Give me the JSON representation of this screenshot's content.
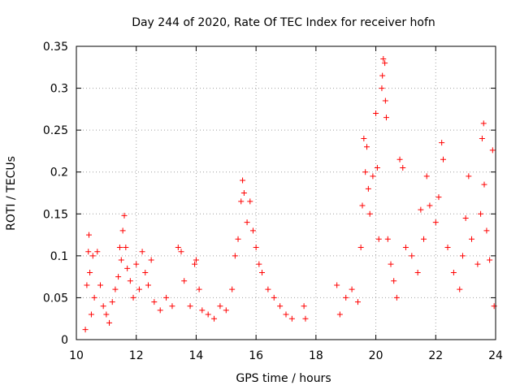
{
  "chart_data": {
    "type": "scatter",
    "title": "Day 244 of 2020, Rate Of TEC Index for receiver hofn",
    "xlabel": "GPS time / hours",
    "ylabel": "ROTI / TECUs",
    "xlim": [
      10,
      24
    ],
    "ylim": [
      0,
      0.35
    ],
    "xticks": [
      "10",
      "12",
      "14",
      "16",
      "18",
      "20",
      "22",
      "24"
    ],
    "yticks": [
      "0",
      "0.05",
      "0.1",
      "0.15",
      "0.2",
      "0.25",
      "0.3",
      "0.35"
    ],
    "grid": true,
    "marker": "+",
    "color": "#ff0000",
    "series": [
      {
        "points": [
          [
            10.3,
            0.012
          ],
          [
            10.35,
            0.065
          ],
          [
            10.4,
            0.105
          ],
          [
            10.42,
            0.125
          ],
          [
            10.45,
            0.08
          ],
          [
            10.5,
            0.03
          ],
          [
            10.55,
            0.1
          ],
          [
            10.6,
            0.05
          ],
          [
            10.7,
            0.105
          ],
          [
            10.8,
            0.065
          ],
          [
            10.9,
            0.04
          ],
          [
            11.0,
            0.03
          ],
          [
            11.1,
            0.02
          ],
          [
            11.2,
            0.045
          ],
          [
            11.3,
            0.06
          ],
          [
            11.4,
            0.075
          ],
          [
            11.45,
            0.11
          ],
          [
            11.5,
            0.095
          ],
          [
            11.55,
            0.13
          ],
          [
            11.6,
            0.148
          ],
          [
            11.65,
            0.11
          ],
          [
            11.7,
            0.085
          ],
          [
            11.8,
            0.07
          ],
          [
            11.9,
            0.05
          ],
          [
            12.0,
            0.09
          ],
          [
            12.1,
            0.06
          ],
          [
            12.2,
            0.105
          ],
          [
            12.3,
            0.08
          ],
          [
            12.4,
            0.065
          ],
          [
            12.5,
            0.095
          ],
          [
            12.6,
            0.045
          ],
          [
            12.8,
            0.035
          ],
          [
            13.0,
            0.05
          ],
          [
            13.2,
            0.04
          ],
          [
            13.4,
            0.11
          ],
          [
            13.5,
            0.105
          ],
          [
            13.6,
            0.07
          ],
          [
            13.8,
            0.04
          ],
          [
            13.95,
            0.09
          ],
          [
            14.0,
            0.095
          ],
          [
            14.1,
            0.06
          ],
          [
            14.2,
            0.035
          ],
          [
            14.4,
            0.03
          ],
          [
            14.6,
            0.025
          ],
          [
            14.8,
            0.04
          ],
          [
            15.0,
            0.035
          ],
          [
            15.2,
            0.06
          ],
          [
            15.3,
            0.1
          ],
          [
            15.4,
            0.12
          ],
          [
            15.5,
            0.165
          ],
          [
            15.55,
            0.19
          ],
          [
            15.6,
            0.175
          ],
          [
            15.7,
            0.14
          ],
          [
            15.8,
            0.165
          ],
          [
            15.9,
            0.13
          ],
          [
            16.0,
            0.11
          ],
          [
            16.1,
            0.09
          ],
          [
            16.2,
            0.08
          ],
          [
            16.4,
            0.06
          ],
          [
            16.6,
            0.05
          ],
          [
            16.8,
            0.04
          ],
          [
            17.0,
            0.03
          ],
          [
            17.2,
            0.025
          ],
          [
            17.6,
            0.04
          ],
          [
            17.65,
            0.025
          ],
          [
            18.7,
            0.065
          ],
          [
            18.8,
            0.03
          ],
          [
            19.0,
            0.05
          ],
          [
            19.2,
            0.06
          ],
          [
            19.4,
            0.045
          ],
          [
            19.5,
            0.11
          ],
          [
            19.55,
            0.16
          ],
          [
            19.6,
            0.24
          ],
          [
            19.65,
            0.2
          ],
          [
            19.7,
            0.23
          ],
          [
            19.75,
            0.18
          ],
          [
            19.8,
            0.15
          ],
          [
            19.9,
            0.195
          ],
          [
            20.0,
            0.27
          ],
          [
            20.05,
            0.205
          ],
          [
            20.1,
            0.12
          ],
          [
            20.2,
            0.3
          ],
          [
            20.22,
            0.315
          ],
          [
            20.25,
            0.335
          ],
          [
            20.3,
            0.33
          ],
          [
            20.32,
            0.285
          ],
          [
            20.35,
            0.265
          ],
          [
            20.4,
            0.12
          ],
          [
            20.5,
            0.09
          ],
          [
            20.6,
            0.07
          ],
          [
            20.7,
            0.05
          ],
          [
            20.8,
            0.215
          ],
          [
            20.9,
            0.205
          ],
          [
            21.0,
            0.11
          ],
          [
            21.2,
            0.1
          ],
          [
            21.4,
            0.08
          ],
          [
            21.5,
            0.155
          ],
          [
            21.6,
            0.12
          ],
          [
            21.7,
            0.195
          ],
          [
            21.8,
            0.16
          ],
          [
            22.0,
            0.14
          ],
          [
            22.1,
            0.17
          ],
          [
            22.2,
            0.235
          ],
          [
            22.25,
            0.215
          ],
          [
            22.4,
            0.11
          ],
          [
            22.6,
            0.08
          ],
          [
            22.8,
            0.06
          ],
          [
            22.9,
            0.1
          ],
          [
            23.0,
            0.145
          ],
          [
            23.1,
            0.195
          ],
          [
            23.2,
            0.12
          ],
          [
            23.4,
            0.09
          ],
          [
            23.5,
            0.15
          ],
          [
            23.55,
            0.24
          ],
          [
            23.6,
            0.258
          ],
          [
            23.62,
            0.185
          ],
          [
            23.7,
            0.13
          ],
          [
            23.8,
            0.095
          ],
          [
            23.9,
            0.226
          ],
          [
            23.95,
            0.04
          ]
        ]
      }
    ]
  }
}
